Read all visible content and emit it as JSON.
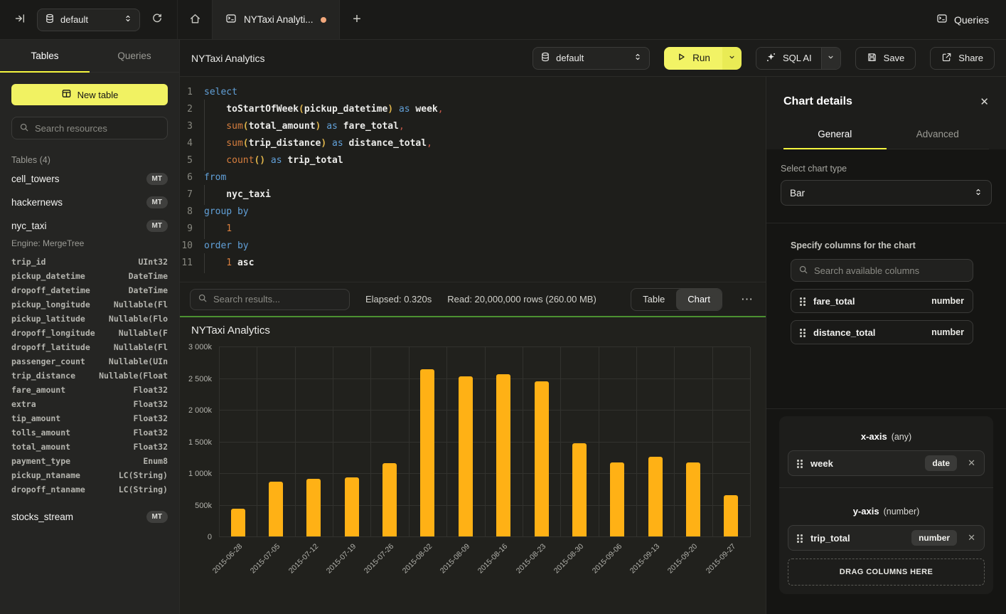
{
  "colors": {
    "accent_yellow": "#f1f262",
    "tab_underline_yellow": "#f5f63f",
    "bar_orange": "#ffb115",
    "success_green": "#4c9131",
    "unsaved_dot_orange": "#f2a87c"
  },
  "topbar": {
    "database_selector": "default",
    "tab_title": "NYTaxi Analyti...",
    "queries_label": "Queries"
  },
  "sidebar": {
    "tabs": [
      {
        "label": "Tables",
        "active": true
      },
      {
        "label": "Queries",
        "active": false
      }
    ],
    "new_table_label": "New table",
    "search_placeholder": "Search resources",
    "section_label": "Tables (4)",
    "tables": [
      {
        "name": "cell_towers",
        "badge": "MT"
      },
      {
        "name": "hackernews",
        "badge": "MT"
      },
      {
        "name": "nyc_taxi",
        "badge": "MT",
        "engine": "Engine: MergeTree",
        "columns": [
          [
            "trip_id",
            "UInt32"
          ],
          [
            "pickup_datetime",
            "DateTime"
          ],
          [
            "dropoff_datetime",
            "DateTime"
          ],
          [
            "pickup_longitude",
            "Nullable(Fl"
          ],
          [
            "pickup_latitude",
            "Nullable(Flo"
          ],
          [
            "dropoff_longitude",
            "Nullable(F"
          ],
          [
            "dropoff_latitude",
            "Nullable(Fl"
          ],
          [
            "passenger_count",
            "Nullable(UIn"
          ],
          [
            "trip_distance",
            "Nullable(Float"
          ],
          [
            "fare_amount",
            "Float32"
          ],
          [
            "extra",
            "Float32"
          ],
          [
            "tip_amount",
            "Float32"
          ],
          [
            "tolls_amount",
            "Float32"
          ],
          [
            "total_amount",
            "Float32"
          ],
          [
            "payment_type",
            "Enum8"
          ],
          [
            "pickup_ntaname",
            "LC(String)"
          ],
          [
            "dropoff_ntaname",
            "LC(String)"
          ]
        ]
      },
      {
        "name": "stocks_stream",
        "badge": "MT"
      }
    ]
  },
  "query_header": {
    "title": "NYTaxi Analytics",
    "database_selector": "default",
    "run_label": "Run",
    "sql_ai_label": "SQL AI",
    "save_label": "Save",
    "share_label": "Share"
  },
  "editor": {
    "lines": [
      [
        [
          "kw",
          "select"
        ]
      ],
      [
        [
          "ind",
          "    "
        ],
        [
          "id",
          "toStartOfWeek"
        ],
        [
          "par",
          "("
        ],
        [
          "id",
          "pickup_datetime"
        ],
        [
          "par",
          ")"
        ],
        [
          "pl",
          " "
        ],
        [
          "kw",
          "as"
        ],
        [
          "pl",
          " "
        ],
        [
          "id",
          "week"
        ],
        [
          "comma",
          ","
        ]
      ],
      [
        [
          "ind",
          "    "
        ],
        [
          "fn",
          "sum"
        ],
        [
          "par",
          "("
        ],
        [
          "id",
          "total_amount"
        ],
        [
          "par",
          ")"
        ],
        [
          "pl",
          " "
        ],
        [
          "kw",
          "as"
        ],
        [
          "pl",
          " "
        ],
        [
          "id",
          "fare_total"
        ],
        [
          "comma",
          ","
        ]
      ],
      [
        [
          "ind",
          "    "
        ],
        [
          "fn",
          "sum"
        ],
        [
          "par",
          "("
        ],
        [
          "id",
          "trip_distance"
        ],
        [
          "par",
          ")"
        ],
        [
          "pl",
          " "
        ],
        [
          "kw",
          "as"
        ],
        [
          "pl",
          " "
        ],
        [
          "id",
          "distance_total"
        ],
        [
          "comma",
          ","
        ]
      ],
      [
        [
          "ind",
          "    "
        ],
        [
          "fn",
          "count"
        ],
        [
          "par",
          "()"
        ],
        [
          "pl",
          " "
        ],
        [
          "kw",
          "as"
        ],
        [
          "pl",
          " "
        ],
        [
          "id",
          "trip_total"
        ]
      ],
      [
        [
          "kw",
          "from"
        ]
      ],
      [
        [
          "ind",
          "    "
        ],
        [
          "id",
          "nyc_taxi"
        ]
      ],
      [
        [
          "kw",
          "group by"
        ]
      ],
      [
        [
          "ind",
          "    "
        ],
        [
          "num",
          "1"
        ]
      ],
      [
        [
          "kw",
          "order by"
        ]
      ],
      [
        [
          "ind",
          "    "
        ],
        [
          "num",
          "1"
        ],
        [
          "pl",
          " "
        ],
        [
          "id",
          "asc"
        ]
      ]
    ]
  },
  "results_bar": {
    "search_placeholder": "Search results...",
    "elapsed": "Elapsed: 0.320s",
    "read": "Read: 20,000,000 rows (260.00 MB)",
    "view_toggle": [
      {
        "label": "Table",
        "active": false
      },
      {
        "label": "Chart",
        "active": true
      }
    ],
    "more_label": "⋯"
  },
  "chart_data": {
    "type": "bar",
    "title": "NYTaxi Analytics",
    "series_name": "trip_total",
    "categories": [
      "2015-06-28",
      "2015-07-05",
      "2015-07-12",
      "2015-07-19",
      "2015-07-26",
      "2015-08-02",
      "2015-08-09",
      "2015-08-16",
      "2015-08-23",
      "2015-08-30",
      "2015-09-06",
      "2015-09-13",
      "2015-09-20",
      "2015-09-27"
    ],
    "values": [
      440000,
      860000,
      910000,
      935000,
      1160000,
      2645000,
      2525000,
      2560000,
      2455000,
      1470000,
      1170000,
      1260000,
      1170000,
      650000
    ],
    "xlabel": "",
    "ylabel": "",
    "ylim": [
      0,
      3000000
    ],
    "ytick_labels": [
      "0",
      "500k",
      "1 000k",
      "1 500k",
      "2 000k",
      "2 500k",
      "3 000k"
    ],
    "grid": true,
    "legend": false,
    "bar_color": "#ffb115"
  },
  "chart_panel": {
    "title": "Chart details",
    "tabs": [
      {
        "label": "General",
        "active": true
      },
      {
        "label": "Advanced",
        "active": false
      }
    ],
    "chart_type_label": "Select chart type",
    "chart_type_value": "Bar",
    "columns_label": "Specify columns for the chart",
    "search_placeholder": "Search available columns",
    "available_columns": [
      {
        "name": "fare_total",
        "type": "number"
      },
      {
        "name": "distance_total",
        "type": "number"
      }
    ],
    "x_axis": {
      "label": "x-axis",
      "constraint": "(any)",
      "chips": [
        {
          "name": "week",
          "type": "date"
        }
      ]
    },
    "y_axis": {
      "label": "y-axis",
      "constraint": "(number)",
      "chips": [
        {
          "name": "trip_total",
          "type": "number"
        }
      ]
    },
    "drop_zone_label": "DRAG COLUMNS HERE"
  }
}
